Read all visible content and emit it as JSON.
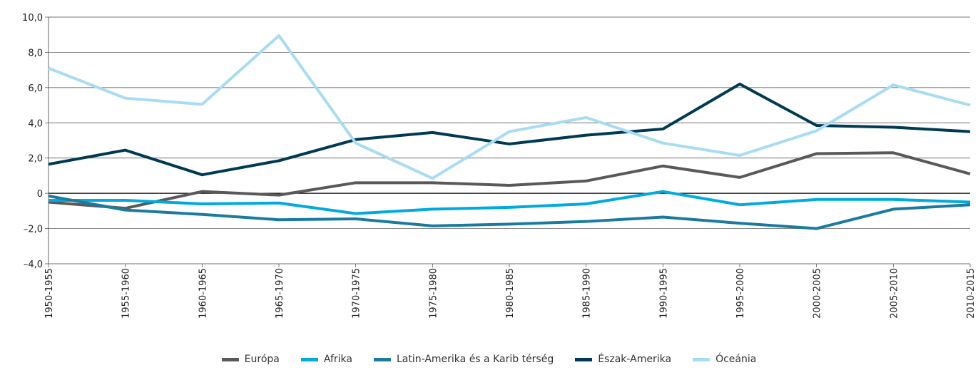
{
  "chart_data": {
    "type": "line",
    "categories": [
      "1950-1955",
      "1955-1960",
      "1960-1965",
      "1965-1970",
      "1970-1975",
      "1975-1980",
      "1980-1985",
      "1985-1990",
      "1990-1995",
      "1995-2000",
      "2000-2005",
      "2005-2010",
      "2010-2015"
    ],
    "series": [
      {
        "name": "Európa",
        "color": "#595959",
        "values": [
          -0.5,
          -0.85,
          0.1,
          -0.1,
          0.6,
          0.6,
          0.45,
          0.7,
          1.55,
          0.9,
          2.25,
          2.3,
          1.1
        ]
      },
      {
        "name": "Afrika",
        "color": "#00a9e0",
        "values": [
          -0.4,
          -0.4,
          -0.6,
          -0.55,
          -1.15,
          -0.9,
          -0.8,
          -0.6,
          0.1,
          -0.65,
          -0.35,
          -0.35,
          -0.5
        ]
      },
      {
        "name": "Latin-Amerika és a Karib térség",
        "color": "#1b7b9e",
        "values": [
          -0.15,
          -0.95,
          -1.2,
          -1.5,
          -1.45,
          -1.85,
          -1.75,
          -1.6,
          -1.35,
          -1.7,
          -2.0,
          -0.9,
          -0.65
        ]
      },
      {
        "name": "Észak-Amerika",
        "color": "#003a52",
        "values": [
          1.65,
          2.45,
          1.05,
          1.85,
          3.05,
          3.45,
          2.8,
          3.3,
          3.65,
          6.2,
          3.85,
          3.75,
          3.5
        ]
      },
      {
        "name": "Óceánia",
        "color": "#a8dcf2",
        "values": [
          7.1,
          5.4,
          5.05,
          8.95,
          2.85,
          0.85,
          3.5,
          4.3,
          2.85,
          2.15,
          3.55,
          6.15,
          5.0
        ]
      }
    ],
    "ylim": [
      -4,
      10
    ],
    "yticks": [
      {
        "value": -4,
        "label": "–4,0"
      },
      {
        "value": -2,
        "label": "–2,0"
      },
      0,
      {
        "value": 2,
        "label": "2,0"
      },
      {
        "value": 4,
        "label": "4,0"
      },
      {
        "value": 6,
        "label": "6,0"
      },
      {
        "value": 8,
        "label": "8,0"
      },
      {
        "value": 10,
        "label": "10,0"
      }
    ],
    "grid": true
  }
}
